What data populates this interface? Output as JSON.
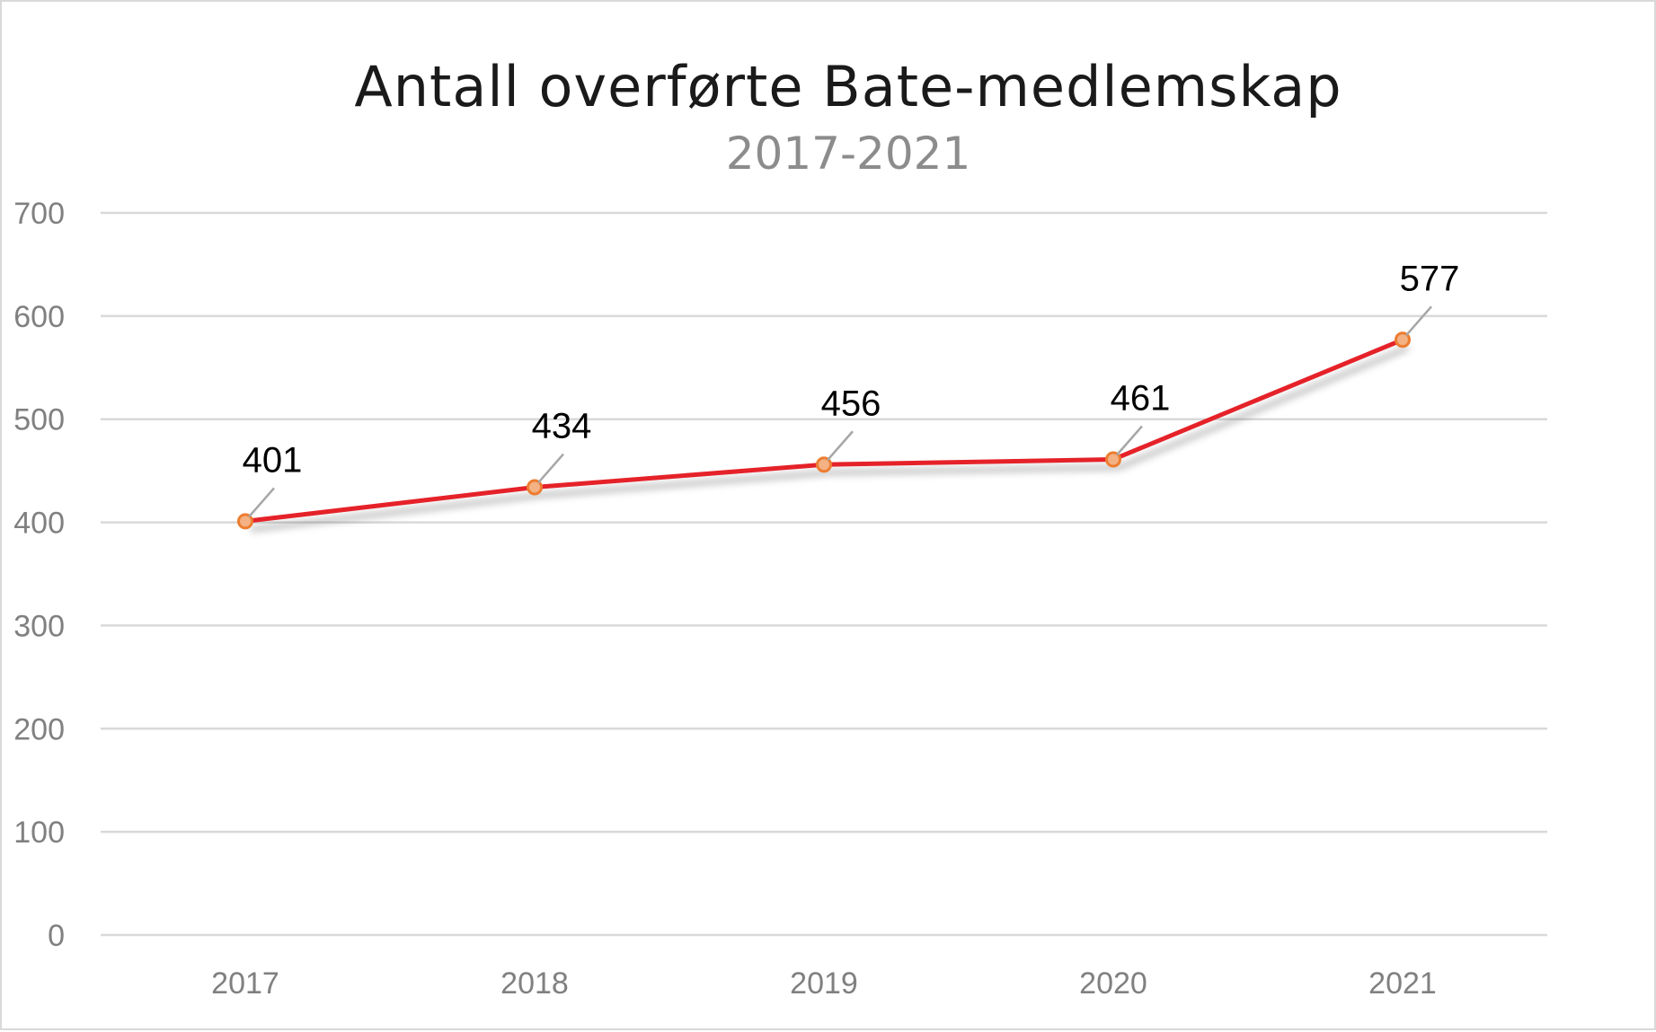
{
  "chart_data": {
    "type": "line",
    "title": "Antall overførte Bate-medlemskap",
    "subtitle": "2017-2021",
    "categories": [
      "2017",
      "2018",
      "2019",
      "2020",
      "2021"
    ],
    "series": [
      {
        "values": [
          401,
          434,
          456,
          461,
          577
        ],
        "color": "#e52229",
        "marker_fill": "#f4b183",
        "marker_stroke": "#ed7d31"
      }
    ],
    "data_labels": [
      "401",
      "434",
      "456",
      "461",
      "577"
    ],
    "y_ticks": [
      "0",
      "100",
      "200",
      "300",
      "400",
      "500",
      "600",
      "700"
    ],
    "ylim": [
      0,
      700
    ],
    "ytick_step": 100,
    "grid": true,
    "legend": "none",
    "xlabel": "",
    "ylabel": ""
  }
}
